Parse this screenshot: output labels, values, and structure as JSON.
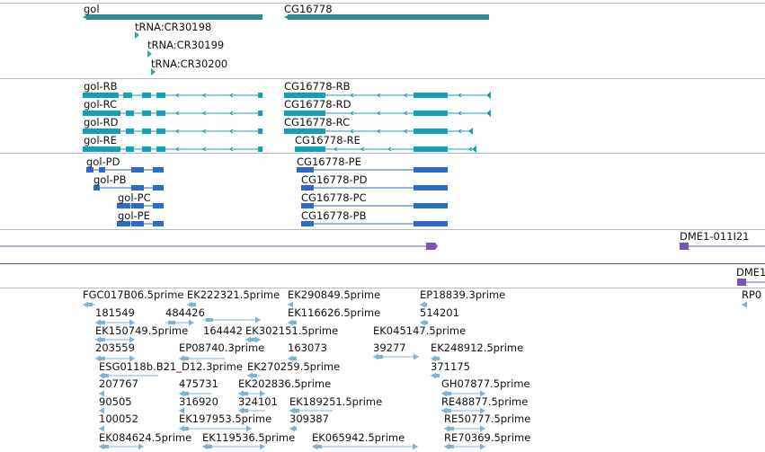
{
  "colors": {
    "divider": "#b8b8c8",
    "gene": "#2e8e8e",
    "trna": "#3aa0a8",
    "transcript": "#10a0b8",
    "protein": "#2d6bc4",
    "clone": "#7a55b0",
    "est": "#7eb2d8",
    "label": "#111111"
  },
  "tracks": {
    "genes": [
      {
        "label": "gol",
        "icon": "gene-bar"
      },
      {
        "label": "CG16778",
        "icon": "gene-bar"
      }
    ],
    "trnas": [
      {
        "label": "tRNA:CR30198",
        "icon": "flag-icon"
      },
      {
        "label": "tRNA:CR30199",
        "icon": "flag-icon"
      },
      {
        "label": "tRNA:CR30200",
        "icon": "flag-icon"
      }
    ],
    "transcripts": [
      {
        "label": "gol-RB"
      },
      {
        "label": "gol-RC"
      },
      {
        "label": "gol-RD"
      },
      {
        "label": "gol-RE"
      },
      {
        "label": "CG16778-RB"
      },
      {
        "label": "CG16778-RD"
      },
      {
        "label": "CG16778-RC"
      },
      {
        "label": "CG16778-RE"
      }
    ],
    "proteins": [
      {
        "label": "gol-PD"
      },
      {
        "label": "gol-PB"
      },
      {
        "label": "gol-PC"
      },
      {
        "label": "gol-PE"
      },
      {
        "label": "CG16778-PE"
      },
      {
        "label": "CG16778-PD"
      },
      {
        "label": "CG16778-PC"
      },
      {
        "label": "CG16778-PB"
      }
    ],
    "clones": [
      {
        "label": "DME1-011I21"
      },
      {
        "label": "DME1"
      }
    ],
    "ests": [
      {
        "label": "FGC017B06.5prime"
      },
      {
        "label": "EK222321.5prime"
      },
      {
        "label": "EK290849.5prime"
      },
      {
        "label": "EP18839.3prime"
      },
      {
        "label": "RP0"
      },
      {
        "label": "181549"
      },
      {
        "label": "484426"
      },
      {
        "label": "EK116626.5prime"
      },
      {
        "label": "514201"
      },
      {
        "label": "EK150749.5prime"
      },
      {
        "label": "164442"
      },
      {
        "label": "EK302151.5prime"
      },
      {
        "label": "EK045147.5prime"
      },
      {
        "label": "203559"
      },
      {
        "label": "EP08740.3prime"
      },
      {
        "label": "163073"
      },
      {
        "label": "39277"
      },
      {
        "label": "EK248912.5prime"
      },
      {
        "label": "ESG0118b.B21_D12.3prime"
      },
      {
        "label": "EK270259.5prime"
      },
      {
        "label": "371175"
      },
      {
        "label": "207767"
      },
      {
        "label": "475731"
      },
      {
        "label": "EK202836.5prime"
      },
      {
        "label": "GH07877.5prime"
      },
      {
        "label": "90505"
      },
      {
        "label": "316920"
      },
      {
        "label": "324101"
      },
      {
        "label": "EK189251.5prime"
      },
      {
        "label": "RE48877.5prime"
      },
      {
        "label": "100052"
      },
      {
        "label": "EK197953.5prime"
      },
      {
        "label": "309387"
      },
      {
        "label": "RE50777.5prime"
      },
      {
        "label": "EK084624.5prime"
      },
      {
        "label": "EK119536.5prime"
      },
      {
        "label": "EK065942.5prime"
      },
      {
        "label": "RE70369.5prime"
      }
    ]
  }
}
